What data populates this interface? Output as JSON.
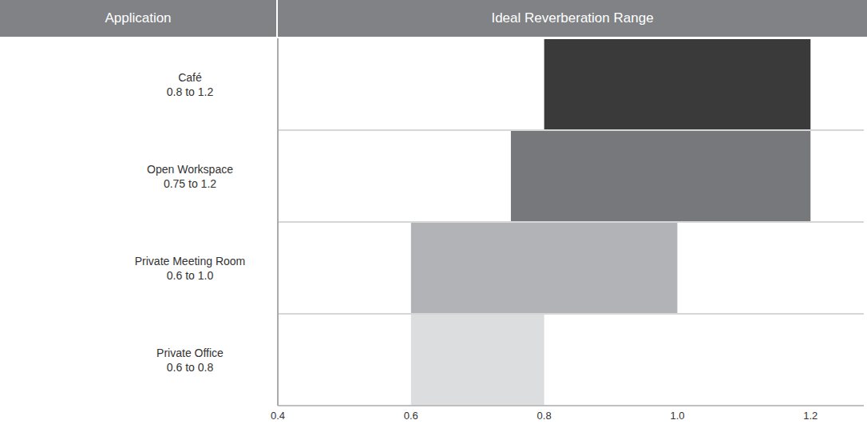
{
  "chart_data": {
    "type": "bar",
    "orientation": "horizontal",
    "headers": [
      "Application",
      "Ideal Reverberation Range"
    ],
    "categories": [
      "Café",
      "Open Workspace",
      "Private Meeting Room",
      "Private Office"
    ],
    "values": [
      [
        0.8,
        1.2
      ],
      [
        0.75,
        1.2
      ],
      [
        0.6,
        1.0
      ],
      [
        0.6,
        0.8
      ]
    ],
    "value_labels": [
      "0.8 to 1.2",
      "0.75 to 1.2",
      "0.6 to 1.0",
      "0.6 to 0.8"
    ],
    "colors": [
      "#3a3a3a",
      "#77787b",
      "#b1b3b6",
      "#dcdddf"
    ],
    "xlim": [
      0.4,
      1.28
    ],
    "xticks": [
      0.4,
      0.6,
      0.8,
      {
        "value": 1.0,
        "label": "1.0"
      },
      1.2
    ]
  }
}
